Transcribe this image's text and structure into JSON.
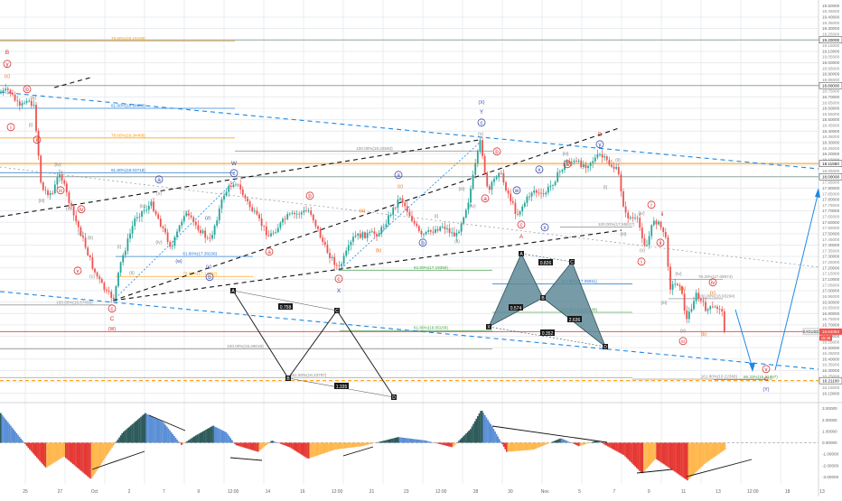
{
  "chart_data": {
    "type": "candlestick",
    "instrument": "XAGUSD",
    "last_price": "16.64084",
    "last_tag": "15:46",
    "colors": {
      "up": "#26a69a",
      "down": "#ef5350",
      "grid": "#e9ecef",
      "wave_red": "#d32f2f",
      "wave_blue": "#3949ab",
      "wave_orange": "#ef6c00",
      "fib_orange": "#ff9800",
      "fib_blue": "#1976d2",
      "fib_green": "#43a047",
      "harmonic": "#5f8a98",
      "osc_dark": "#2e5b5b",
      "osc_blue": "#5b8fd6",
      "osc_red": "#e53935",
      "osc_orange": "#ffb74d"
    },
    "price_axis": {
      "ylim": [
        16.05,
        19.55
      ],
      "ticks": [
        "19.50000",
        "19.40000",
        "19.30000",
        "19.20000",
        "19.10000",
        "19.00000",
        "18.90000",
        "18.80000",
        "18.70000",
        "18.60000",
        "18.50000",
        "18.40000",
        "18.30000",
        "18.20000",
        "18.10000",
        "18.00000",
        "17.90000",
        "17.80000",
        "17.70000",
        "17.60000",
        "17.50000",
        "17.40000",
        "17.30000",
        "17.20000",
        "17.10000",
        "17.00000",
        "16.90000",
        "16.80000",
        "16.70000",
        "16.60000",
        "16.50000",
        "16.40000",
        "16.30000",
        "16.20000",
        "16.10000"
      ],
      "ticks_mid": [
        "19.45000",
        "19.35000",
        "19.25000",
        "19.15000",
        "19.05000",
        "18.95000",
        "18.85000",
        "18.75000",
        "18.65000",
        "18.55000",
        "18.45000",
        "18.35000",
        "18.25000",
        "18.15000",
        "18.05000",
        "17.95000",
        "17.85000",
        "17.75000",
        "17.65000",
        "17.55000",
        "17.45000",
        "17.35000",
        "17.25000",
        "17.15000",
        "17.05000",
        "16.95000",
        "16.85000",
        "16.75000",
        "16.65000",
        "16.55000",
        "16.45000",
        "16.35000",
        "16.25000",
        "16.15000"
      ],
      "boxed_levels": [
        {
          "label": "19.20000",
          "value": 19.2
        },
        {
          "label": "18.80000",
          "value": 18.8
        },
        {
          "label": "18.11550",
          "value": 18.1155
        },
        {
          "label": "18.00000",
          "value": 18.0
        },
        {
          "label": "16.21100",
          "value": 16.211
        }
      ]
    },
    "oscillator_axis": {
      "ylim": [
        -3.6,
        3.2
      ],
      "ticks": [
        "3.00000",
        "2.00000",
        "1.00000",
        "0.00000",
        "-1.00000",
        "-2.00000",
        "-3.00000"
      ]
    },
    "time_axis": {
      "labels": [
        "25",
        "27",
        "Oct",
        "2",
        "7",
        "9",
        "12:00",
        "14",
        "16",
        "12:00",
        "21",
        "23",
        "12:00",
        "28",
        "30",
        "Nov",
        "5",
        "7",
        "9",
        "11",
        "13",
        "12:00",
        "18",
        "13"
      ]
    },
    "fib_labels": [
      {
        "text": "78.60%(19.19159)",
        "value": 19.19,
        "x0": 0,
        "x1": 260,
        "color": "fib_orange"
      },
      {
        "text": "61.80%(18.59908)",
        "value": 18.6,
        "x0": 0,
        "x1": 260,
        "color": "fib_blue"
      },
      {
        "text": "78.60%(18.34468)",
        "value": 18.34,
        "x0": 0,
        "x1": 260,
        "color": "fib_orange"
      },
      {
        "text": "61.80%(18.03718)",
        "value": 18.035,
        "x0": 0,
        "x1": 260,
        "color": "fib_blue"
      },
      {
        "text": "100.00%(18.22593)",
        "value": 18.225,
        "x0": 260,
        "x1": 545,
        "color": "grey"
      },
      {
        "text": "61.80%(17.30236)",
        "value": 17.3,
        "x0": 128,
        "x1": 280,
        "color": "fib_blue"
      },
      {
        "text": "78.60%(17.12482)",
        "value": 17.125,
        "x0": 128,
        "x1": 280,
        "color": "fib_orange"
      },
      {
        "text": "61.80%(17.18359)",
        "value": 17.18,
        "x0": 376,
        "x1": 545,
        "color": "fib_green"
      },
      {
        "text": "161.80%(17.05911)",
        "value": 17.06,
        "x0": 545,
        "x1": 700,
        "color": "fib_blue"
      },
      {
        "text": "100.00%(16.81238)",
        "value": 16.81,
        "x0": 545,
        "x1": 700,
        "color": "fib_green"
      },
      {
        "text": "61.80%(16.65166)",
        "value": 16.65,
        "x0": 376,
        "x1": 545,
        "color": "fib_green"
      },
      {
        "text": "100.00%(16.49019)",
        "value": 16.49,
        "x0": 0,
        "x1": 545,
        "color": "grey"
      },
      {
        "text": "100.00%(16.87458)",
        "value": 16.875,
        "x0": 0,
        "x1": 125,
        "color": "grey"
      },
      {
        "text": "261.80%(16.23797)",
        "value": 16.238,
        "x0": 0,
        "x1": 700,
        "color": "grey"
      },
      {
        "text": "161.80%(16.22366)",
        "value": 16.224,
        "x0": 700,
        "x1": 855,
        "color": "grey"
      },
      {
        "text": "78.20%(17.09974)",
        "value": 17.1,
        "x0": 740,
        "x1": 800,
        "color": "grey"
      },
      {
        "text": "100.00%(16.93294)",
        "value": 16.93,
        "x0": 740,
        "x1": 800,
        "color": "grey"
      },
      {
        "text": "100.00%(17.55817)",
        "value": 17.558,
        "x0": 620,
        "x1": 700,
        "color": "grey"
      },
      {
        "text": "86.33%(16.21887)",
        "value": 16.219,
        "x0": 790,
        "x1": 850,
        "color": "fib_green"
      }
    ],
    "wave_labels": [
      {
        "text": "B",
        "x": 8,
        "y": 60,
        "color": "wave_red",
        "circled": false
      },
      {
        "text": "y",
        "x": 8,
        "y": 73,
        "color": "wave_red",
        "circled": true
      },
      {
        "text": "(c)",
        "x": 8,
        "y": 86,
        "color": "wave_orange",
        "circled": false
      },
      {
        "text": "b",
        "x": 30,
        "y": 101,
        "color": "wave_red",
        "circled": true
      },
      {
        "text": "(b)",
        "x": 37,
        "y": 110,
        "color": "grey",
        "circled": false
      },
      {
        "text": "(i)",
        "x": 34,
        "y": 140,
        "color": "grey",
        "circled": false
      },
      {
        "text": "i",
        "x": 12,
        "y": 143,
        "color": "wave_red",
        "circled": true
      },
      {
        "text": "ii",
        "x": 41,
        "y": 157,
        "color": "wave_red",
        "circled": true
      },
      {
        "text": "(iv)",
        "x": 64,
        "y": 184,
        "color": "grey",
        "circled": false
      },
      {
        "text": "(iii)",
        "x": 46,
        "y": 224,
        "color": "grey",
        "circled": false
      },
      {
        "text": "iii",
        "x": 67,
        "y": 213,
        "color": "wave_red",
        "circled": true
      },
      {
        "text": "(v)",
        "x": 76,
        "y": 233,
        "color": "grey",
        "circled": false
      },
      {
        "text": "iv",
        "x": 90,
        "y": 234,
        "color": "wave_red",
        "circled": true
      },
      {
        "text": "(a)",
        "x": 89,
        "y": 260,
        "color": "grey",
        "circled": false
      },
      {
        "text": "(b)",
        "x": 100,
        "y": 265,
        "color": "grey",
        "circled": false
      },
      {
        "text": "v",
        "x": 86,
        "y": 302,
        "color": "wave_red",
        "circled": true
      },
      {
        "text": "(c)",
        "x": 102,
        "y": 308,
        "color": "grey",
        "circled": false
      },
      {
        "text": "c",
        "x": 124,
        "y": 344,
        "color": "wave_red",
        "circled": true
      },
      {
        "text": "C",
        "x": 124,
        "y": 355,
        "color": "wave_red",
        "circled": false
      },
      {
        "text": "(W)",
        "x": 124,
        "y": 366,
        "color": "wave_red",
        "circled": false
      },
      {
        "text": "(i)",
        "x": 132,
        "y": 275,
        "color": "grey",
        "circled": false
      },
      {
        "text": "(ii)",
        "x": 146,
        "y": 304,
        "color": "grey",
        "circled": false
      },
      {
        "text": "(iii)",
        "x": 158,
        "y": 230,
        "color": "grey",
        "circled": false
      },
      {
        "text": "(iv)",
        "x": 176,
        "y": 270,
        "color": "grey",
        "circled": false
      },
      {
        "text": "(v)",
        "x": 176,
        "y": 216,
        "color": "grey",
        "circled": false
      },
      {
        "text": "a",
        "x": 176,
        "y": 201,
        "color": "wave_blue",
        "circled": true
      },
      {
        "text": "(w)",
        "x": 198,
        "y": 291,
        "color": "wave_blue",
        "circled": false
      },
      {
        "text": "(x)",
        "x": 206,
        "y": 237,
        "color": "grey",
        "circled": false
      },
      {
        "text": "(y)",
        "x": 231,
        "y": 297,
        "color": "wave_blue",
        "circled": false
      },
      {
        "text": "b",
        "x": 232,
        "y": 309,
        "color": "wave_blue",
        "circled": true
      },
      {
        "text": "(z)",
        "x": 230,
        "y": 243,
        "color": "wave_blue",
        "circled": false
      },
      {
        "text": "W",
        "x": 259,
        "y": 183,
        "color": "wave_blue",
        "circled": false
      },
      {
        "text": "c",
        "x": 259,
        "y": 194,
        "color": "wave_blue",
        "circled": true
      },
      {
        "text": "a",
        "x": 298,
        "y": 281,
        "color": "wave_red",
        "circled": true
      },
      {
        "text": "b",
        "x": 343,
        "y": 219,
        "color": "wave_red",
        "circled": true
      },
      {
        "text": "(a)",
        "x": 401,
        "y": 235,
        "color": "wave_orange",
        "circled": false
      },
      {
        "text": "(b)",
        "x": 419,
        "y": 279,
        "color": "wave_orange",
        "circled": false
      },
      {
        "text": "(c)",
        "x": 443,
        "y": 208,
        "color": "wave_orange",
        "circled": false
      },
      {
        "text": "c",
        "x": 375,
        "y": 311,
        "color": "wave_red",
        "circled": true
      },
      {
        "text": "X",
        "x": 375,
        "y": 324,
        "color": "wave_blue",
        "circled": false
      },
      {
        "text": "a",
        "x": 441,
        "y": 196,
        "color": "wave_blue",
        "circled": true
      },
      {
        "text": "b",
        "x": 468,
        "y": 271,
        "color": "wave_blue",
        "circled": true
      },
      {
        "text": "(i)",
        "x": 483,
        "y": 241,
        "color": "grey",
        "circled": false
      },
      {
        "text": "(ii)",
        "x": 506,
        "y": 269,
        "color": "grey",
        "circled": false
      },
      {
        "text": "(iii)",
        "x": 511,
        "y": 211,
        "color": "grey",
        "circled": false
      },
      {
        "text": "(iv)",
        "x": 523,
        "y": 230,
        "color": "grey",
        "circled": false
      },
      {
        "text": "(v)",
        "x": 532,
        "y": 150,
        "color": "grey",
        "circled": false
      },
      {
        "text": "(X)",
        "x": 533,
        "y": 115,
        "color": "wave_blue",
        "circled": false
      },
      {
        "text": "Y",
        "x": 533,
        "y": 126,
        "color": "wave_blue",
        "circled": false
      },
      {
        "text": "c",
        "x": 533,
        "y": 138,
        "color": "wave_blue",
        "circled": true
      },
      {
        "text": "a",
        "x": 537,
        "y": 222,
        "color": "wave_red",
        "circled": true
      },
      {
        "text": "b",
        "x": 550,
        "y": 170,
        "color": "wave_red",
        "circled": true
      },
      {
        "text": "c",
        "x": 577,
        "y": 251,
        "color": "wave_red",
        "circled": true
      },
      {
        "text": "A",
        "x": 577,
        "y": 264,
        "color": "wave_red",
        "circled": false
      },
      {
        "text": "w",
        "x": 572,
        "y": 213,
        "color": "wave_blue",
        "circled": true
      },
      {
        "text": "x",
        "x": 597,
        "y": 190,
        "color": "wave_blue",
        "circled": true
      },
      {
        "text": "x",
        "x": 603,
        "y": 254,
        "color": "wave_blue",
        "circled": true
      },
      {
        "text": "y",
        "x": 664,
        "y": 162,
        "color": "wave_blue",
        "circled": true
      },
      {
        "text": "B",
        "x": 664,
        "y": 151,
        "color": "wave_red",
        "circled": false
      },
      {
        "text": "a",
        "x": 628,
        "y": 184,
        "color": "wave_red",
        "circled": true
      },
      {
        "text": "(iii)",
        "x": 626,
        "y": 172,
        "color": "grey",
        "circled": false
      },
      {
        "text": "(ii)",
        "x": 684,
        "y": 179,
        "color": "grey",
        "circled": false
      },
      {
        "text": "(i)",
        "x": 670,
        "y": 209,
        "color": "grey",
        "circled": false
      },
      {
        "text": "i",
        "x": 721,
        "y": 229,
        "color": "wave_red",
        "circled": true
      },
      {
        "text": "ii",
        "x": 733,
        "y": 239,
        "color": "wave_red",
        "circled": false
      },
      {
        "text": "(iv)",
        "x": 710,
        "y": 238,
        "color": "grey",
        "circled": false
      },
      {
        "text": "(v)",
        "x": 711,
        "y": 279,
        "color": "grey",
        "circled": false
      },
      {
        "text": "i",
        "x": 710,
        "y": 292,
        "color": "wave_red",
        "circled": true
      },
      {
        "text": "(iii)",
        "x": 690,
        "y": 261,
        "color": "grey",
        "circled": false
      },
      {
        "text": "(iv)",
        "x": 751,
        "y": 305,
        "color": "grey",
        "circled": false
      },
      {
        "text": "ii",
        "x": 731,
        "y": 271,
        "color": "wave_red",
        "circled": true
      },
      {
        "text": "(iii)",
        "x": 735,
        "y": 337,
        "color": "grey",
        "circled": false
      },
      {
        "text": "(v)",
        "x": 756,
        "y": 368,
        "color": "grey",
        "circled": false
      },
      {
        "text": "iii",
        "x": 756,
        "y": 380,
        "color": "wave_red",
        "circled": true
      },
      {
        "text": "(a)",
        "x": 756,
        "y": 321,
        "color": "wave_orange",
        "circled": false
      },
      {
        "text": "(b)",
        "x": 779,
        "y": 372,
        "color": "wave_orange",
        "circled": false
      },
      {
        "text": "iv",
        "x": 789,
        "y": 315,
        "color": "wave_red",
        "circled": true
      },
      {
        "text": "(c)",
        "x": 789,
        "y": 326,
        "color": "wave_orange",
        "circled": false
      },
      {
        "text": "v",
        "x": 848,
        "y": 411,
        "color": "wave_red",
        "circled": true
      },
      {
        "text": "C",
        "x": 848,
        "y": 422,
        "color": "wave_red",
        "circled": false
      },
      {
        "text": "(Y)",
        "x": 848,
        "y": 433,
        "color": "wave_blue",
        "circled": false
      }
    ],
    "harmonic_pattern": {
      "points": [
        {
          "label": "X",
          "x": 541,
          "y": 362
        },
        {
          "label": "A",
          "x": 577,
          "y": 281
        },
        {
          "label": "B",
          "x": 601,
          "y": 330
        },
        {
          "label": "C",
          "x": 633,
          "y": 290
        },
        {
          "label": "D",
          "x": 670,
          "y": 384
        }
      ],
      "ratios": [
        {
          "text": "0.574",
          "x": 571,
          "y": 341
        },
        {
          "text": "0.826",
          "x": 604,
          "y": 291
        },
        {
          "text": "2.636",
          "x": 636,
          "y": 354
        },
        {
          "text": "0.352",
          "x": 606,
          "y": 369
        }
      ]
    },
    "abcd_pattern": {
      "points": [
        {
          "label": "A",
          "x": 258,
          "y": 322
        },
        {
          "label": "B",
          "x": 319,
          "y": 419
        },
        {
          "label": "C",
          "x": 373,
          "y": 344
        },
        {
          "label": "D",
          "x": 436,
          "y": 440
        }
      ],
      "ratios": [
        {
          "text": "0.758",
          "x": 316,
          "y": 340
        },
        {
          "text": "1.335",
          "x": 378,
          "y": 428
        }
      ]
    }
  }
}
